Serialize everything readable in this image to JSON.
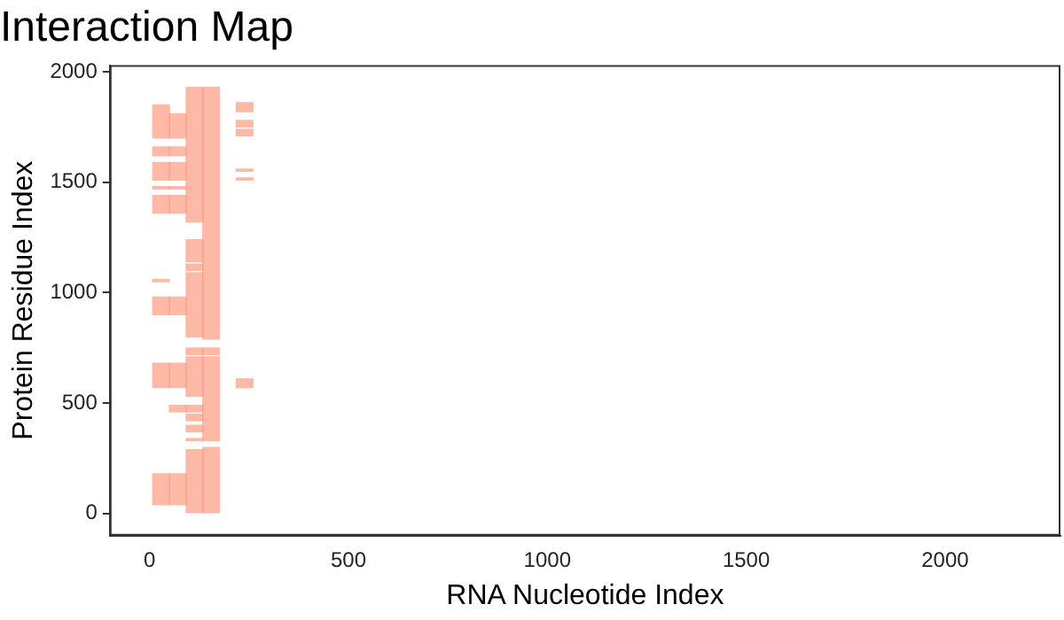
{
  "chart_data": {
    "type": "bar",
    "title": "Interaction Map",
    "xlabel": "RNA Nucleotide Index",
    "ylabel": "Protein Residue Index",
    "series": [
      {
        "color": "#ff8a6a",
        "x": [
          29
        ],
        "base": [
          40
        ],
        "values": [
          140
        ]
      },
      {
        "color": "#ff8a6a",
        "x": [
          29
        ],
        "base": [
          570
        ],
        "values": [
          110
        ]
      },
      {
        "color": "#ff8a6a",
        "x": [
          29
        ],
        "base": [
          900
        ],
        "values": [
          80
        ]
      },
      {
        "color": "#ff8a6a",
        "x": [
          29
        ],
        "base": [
          1050
        ],
        "values": [
          10
        ]
      },
      {
        "color": "#ff8a6a",
        "x": [
          29
        ],
        "base": [
          1360
        ],
        "values": [
          80
        ]
      },
      {
        "color": "#ff8a6a",
        "x": [
          29
        ],
        "base": [
          1470
        ],
        "values": [
          10
        ]
      },
      {
        "color": "#ff8a6a",
        "x": [
          29
        ],
        "base": [
          1510
        ],
        "values": [
          80
        ]
      },
      {
        "color": "#ff8a6a",
        "x": [
          29
        ],
        "base": [
          1620
        ],
        "values": [
          40
        ]
      },
      {
        "color": "#ff8a6a",
        "x": [
          29
        ],
        "base": [
          1700
        ],
        "values": [
          150
        ]
      },
      {
        "color": "#ff8a6a",
        "x": [
          71
        ],
        "base": [
          40
        ],
        "values": [
          140
        ]
      },
      {
        "color": "#ff8a6a",
        "x": [
          71
        ],
        "base": [
          460
        ],
        "values": [
          30
        ]
      },
      {
        "color": "#ff8a6a",
        "x": [
          71
        ],
        "base": [
          570
        ],
        "values": [
          110
        ]
      },
      {
        "color": "#ff8a6a",
        "x": [
          71
        ],
        "base": [
          900
        ],
        "values": [
          80
        ]
      },
      {
        "color": "#ff8a6a",
        "x": [
          71
        ],
        "base": [
          1360
        ],
        "values": [
          80
        ]
      },
      {
        "color": "#ff8a6a",
        "x": [
          71
        ],
        "base": [
          1470
        ],
        "values": [
          10
        ]
      },
      {
        "color": "#ff8a6a",
        "x": [
          71
        ],
        "base": [
          1510
        ],
        "values": [
          80
        ]
      },
      {
        "color": "#ff8a6a",
        "x": [
          71
        ],
        "base": [
          1620
        ],
        "values": [
          40
        ]
      },
      {
        "color": "#ff8a6a",
        "x": [
          71
        ],
        "base": [
          1700
        ],
        "values": [
          110
        ]
      },
      {
        "color": "#ff8a6a",
        "x": [
          113
        ],
        "base": [
          0
        ],
        "values": [
          290
        ]
      },
      {
        "color": "#ff8a6a",
        "x": [
          113
        ],
        "base": [
          330
        ],
        "values": [
          10
        ]
      },
      {
        "color": "#ff8a6a",
        "x": [
          113
        ],
        "base": [
          370
        ],
        "values": [
          30
        ]
      },
      {
        "color": "#ff8a6a",
        "x": [
          113
        ],
        "base": [
          420
        ],
        "values": [
          30
        ]
      },
      {
        "color": "#ff8a6a",
        "x": [
          113
        ],
        "base": [
          460
        ],
        "values": [
          30
        ]
      },
      {
        "color": "#ff8a6a",
        "x": [
          113
        ],
        "base": [
          530
        ],
        "values": [
          180
        ]
      },
      {
        "color": "#ff8a6a",
        "x": [
          113
        ],
        "base": [
          720
        ],
        "values": [
          30
        ]
      },
      {
        "color": "#ff8a6a",
        "x": [
          113
        ],
        "base": [
          800
        ],
        "values": [
          290
        ]
      },
      {
        "color": "#ff8a6a",
        "x": [
          113
        ],
        "base": [
          1100
        ],
        "values": [
          30
        ]
      },
      {
        "color": "#ff8a6a",
        "x": [
          113
        ],
        "base": [
          1140
        ],
        "values": [
          100
        ]
      },
      {
        "color": "#ff8a6a",
        "x": [
          113
        ],
        "base": [
          1320
        ],
        "values": [
          610
        ]
      },
      {
        "color": "#ff8a6a",
        "x": [
          155
        ],
        "base": [
          0
        ],
        "values": [
          300
        ]
      },
      {
        "color": "#ff8a6a",
        "x": [
          155
        ],
        "base": [
          330
        ],
        "values": [
          380
        ]
      },
      {
        "color": "#ff8a6a",
        "x": [
          155
        ],
        "base": [
          720
        ],
        "values": [
          30
        ]
      },
      {
        "color": "#ff8a6a",
        "x": [
          155
        ],
        "base": [
          790
        ],
        "values": [
          1140
        ]
      },
      {
        "color": "#ff8a6a",
        "x": [
          239
        ],
        "base": [
          570
        ],
        "values": [
          40
        ]
      },
      {
        "color": "#ff8a6a",
        "x": [
          239
        ],
        "base": [
          1510
        ],
        "values": [
          10
        ]
      },
      {
        "color": "#ff8a6a",
        "x": [
          239
        ],
        "base": [
          1550
        ],
        "values": [
          10
        ]
      },
      {
        "color": "#ff8a6a",
        "x": [
          239
        ],
        "base": [
          1710
        ],
        "values": [
          30
        ]
      },
      {
        "color": "#ff8a6a",
        "x": [
          239
        ],
        "base": [
          1750
        ],
        "values": [
          30
        ]
      },
      {
        "color": "#ff8a6a",
        "x": [
          239
        ],
        "base": [
          1820
        ],
        "values": [
          40
        ]
      }
    ],
    "xlim": [
      -100,
      2290
    ],
    "ylim": [
      -100,
      2030
    ],
    "xticks": [
      0,
      500,
      1000,
      1500,
      2000
    ],
    "yticks": [
      0,
      500,
      1000,
      1500,
      2000
    ],
    "grid": false,
    "legend": false
  }
}
